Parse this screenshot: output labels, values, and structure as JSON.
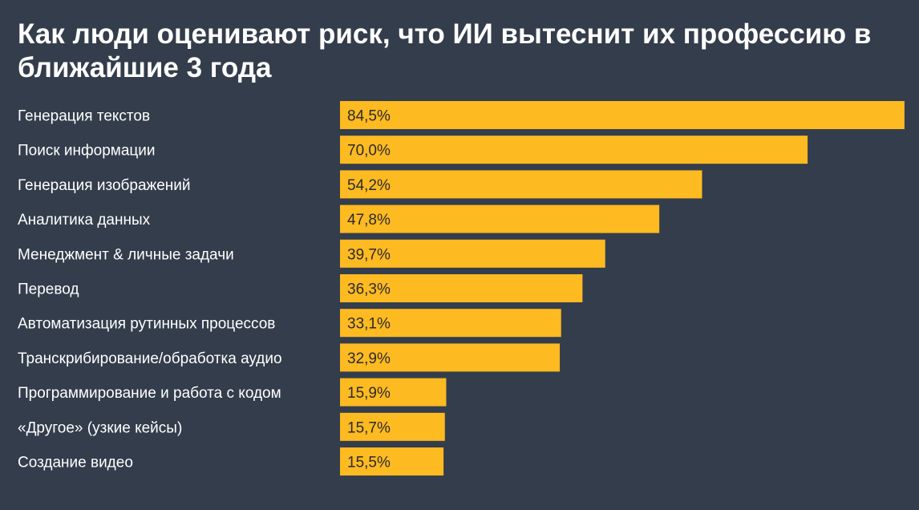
{
  "chart_data": {
    "type": "bar",
    "orientation": "horizontal",
    "title": "Как люди оценивают риск, что ИИ вытеснит их профессию в ближайшие 3 года",
    "categories": [
      "Генерация текстов",
      "Поиск информации",
      "Генерация изображений",
      "Аналитика данных",
      "Менеджмент & личные задачи",
      "Перевод",
      "Автоматизация рутинных процессов",
      "Транскрибирование/обработка аудио",
      "Программирование и работа с кодом",
      "«Другое» (узкие кейсы)",
      "Создание видео"
    ],
    "values": [
      84.5,
      70.0,
      54.2,
      47.8,
      39.7,
      36.3,
      33.1,
      32.9,
      15.9,
      15.7,
      15.5
    ],
    "value_labels": [
      "84,5%",
      "70,0%",
      "54,2%",
      "47,8%",
      "39,7%",
      "36,3%",
      "33,1%",
      "32,9%",
      "15,9%",
      "15,7%",
      "15,5%"
    ],
    "bar_color": "#fdba21",
    "background_color": "#343d4b",
    "grid": false,
    "legend": "none"
  }
}
